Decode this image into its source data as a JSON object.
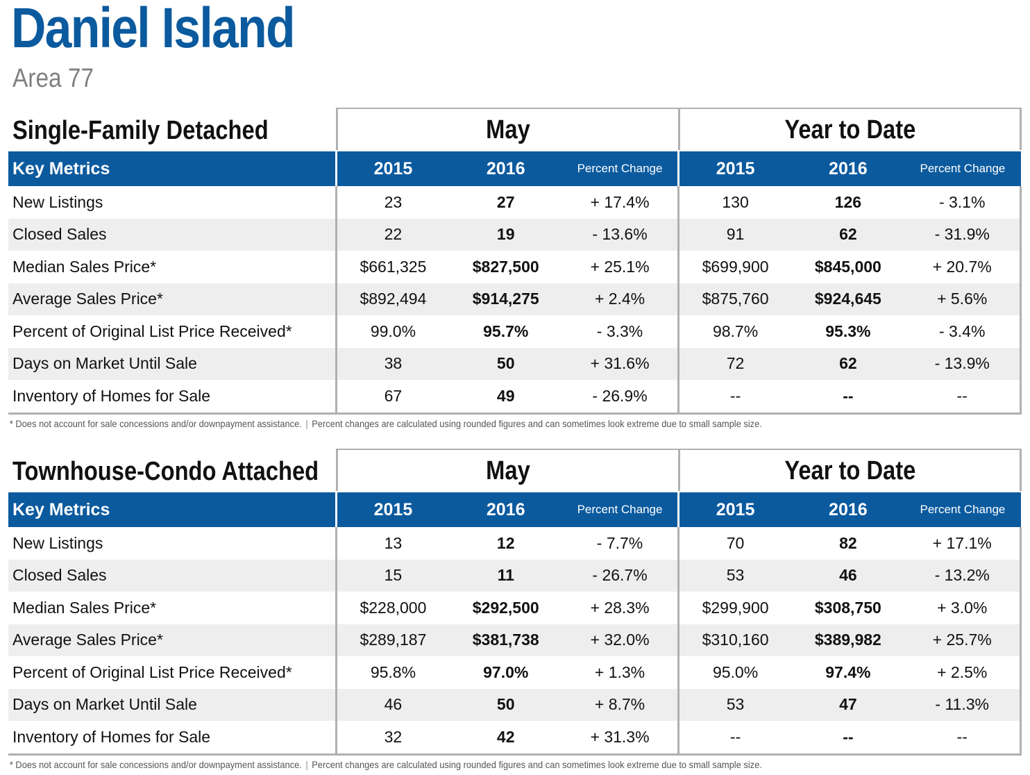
{
  "page": {
    "title": "Daniel Island",
    "subtitle": "Area 77"
  },
  "columns": {
    "key_metrics": "Key Metrics",
    "y2015": "2015",
    "y2016": "2016",
    "percent_change": "Percent Change"
  },
  "periods": {
    "month": "May",
    "ytd": "Year to Date"
  },
  "sections": [
    {
      "name": "Single-Family Detached",
      "rows": [
        {
          "label": "New Listings",
          "may_2015": "23",
          "may_2016": "27",
          "may_pct": "+ 17.4%",
          "ytd_2015": "130",
          "ytd_2016": "126",
          "ytd_pct": "- 3.1%"
        },
        {
          "label": "Closed Sales",
          "may_2015": "22",
          "may_2016": "19",
          "may_pct": "- 13.6%",
          "ytd_2015": "91",
          "ytd_2016": "62",
          "ytd_pct": "- 31.9%"
        },
        {
          "label": "Median Sales Price*",
          "may_2015": "$661,325",
          "may_2016": "$827,500",
          "may_pct": "+ 25.1%",
          "ytd_2015": "$699,900",
          "ytd_2016": "$845,000",
          "ytd_pct": "+ 20.7%"
        },
        {
          "label": "Average Sales Price*",
          "may_2015": "$892,494",
          "may_2016": "$914,275",
          "may_pct": "+ 2.4%",
          "ytd_2015": "$875,760",
          "ytd_2016": "$924,645",
          "ytd_pct": "+ 5.6%"
        },
        {
          "label": "Percent of Original List Price Received*",
          "may_2015": "99.0%",
          "may_2016": "95.7%",
          "may_pct": "- 3.3%",
          "ytd_2015": "98.7%",
          "ytd_2016": "95.3%",
          "ytd_pct": "- 3.4%"
        },
        {
          "label": "Days on Market Until Sale",
          "may_2015": "38",
          "may_2016": "50",
          "may_pct": "+ 31.6%",
          "ytd_2015": "72",
          "ytd_2016": "62",
          "ytd_pct": "- 13.9%"
        },
        {
          "label": "Inventory of Homes for Sale",
          "may_2015": "67",
          "may_2016": "49",
          "may_pct": "- 26.9%",
          "ytd_2015": "--",
          "ytd_2016": "--",
          "ytd_pct": "--"
        }
      ]
    },
    {
      "name": "Townhouse-Condo Attached",
      "rows": [
        {
          "label": "New Listings",
          "may_2015": "13",
          "may_2016": "12",
          "may_pct": "- 7.7%",
          "ytd_2015": "70",
          "ytd_2016": "82",
          "ytd_pct": "+ 17.1%"
        },
        {
          "label": "Closed Sales",
          "may_2015": "15",
          "may_2016": "11",
          "may_pct": "- 26.7%",
          "ytd_2015": "53",
          "ytd_2016": "46",
          "ytd_pct": "- 13.2%"
        },
        {
          "label": "Median Sales Price*",
          "may_2015": "$228,000",
          "may_2016": "$292,500",
          "may_pct": "+ 28.3%",
          "ytd_2015": "$299,900",
          "ytd_2016": "$308,750",
          "ytd_pct": "+ 3.0%"
        },
        {
          "label": "Average Sales Price*",
          "may_2015": "$289,187",
          "may_2016": "$381,738",
          "may_pct": "+ 32.0%",
          "ytd_2015": "$310,160",
          "ytd_2016": "$389,982",
          "ytd_pct": "+ 25.7%"
        },
        {
          "label": "Percent of Original List Price Received*",
          "may_2015": "95.8%",
          "may_2016": "97.0%",
          "may_pct": "+ 1.3%",
          "ytd_2015": "95.0%",
          "ytd_2016": "97.4%",
          "ytd_pct": "+ 2.5%"
        },
        {
          "label": "Days on Market Until Sale",
          "may_2015": "46",
          "may_2016": "50",
          "may_pct": "+ 8.7%",
          "ytd_2015": "53",
          "ytd_2016": "47",
          "ytd_pct": "- 11.3%"
        },
        {
          "label": "Inventory of Homes for Sale",
          "may_2015": "32",
          "may_2016": "42",
          "may_pct": "+ 31.3%",
          "ytd_2015": "--",
          "ytd_2016": "--",
          "ytd_pct": "--"
        }
      ]
    }
  ],
  "footnote": {
    "left": "* Does not account for sale concessions and/or downpayment assistance.",
    "separator": "|",
    "right": "Percent changes are calculated using rounded figures and can sometimes look extreme due to small sample size."
  },
  "colors": {
    "brand_blue": "#0b5a9e",
    "subtitle_gray": "#808080",
    "row_stripe": "#eeeeee",
    "border_gray": "#b0b0b0"
  }
}
